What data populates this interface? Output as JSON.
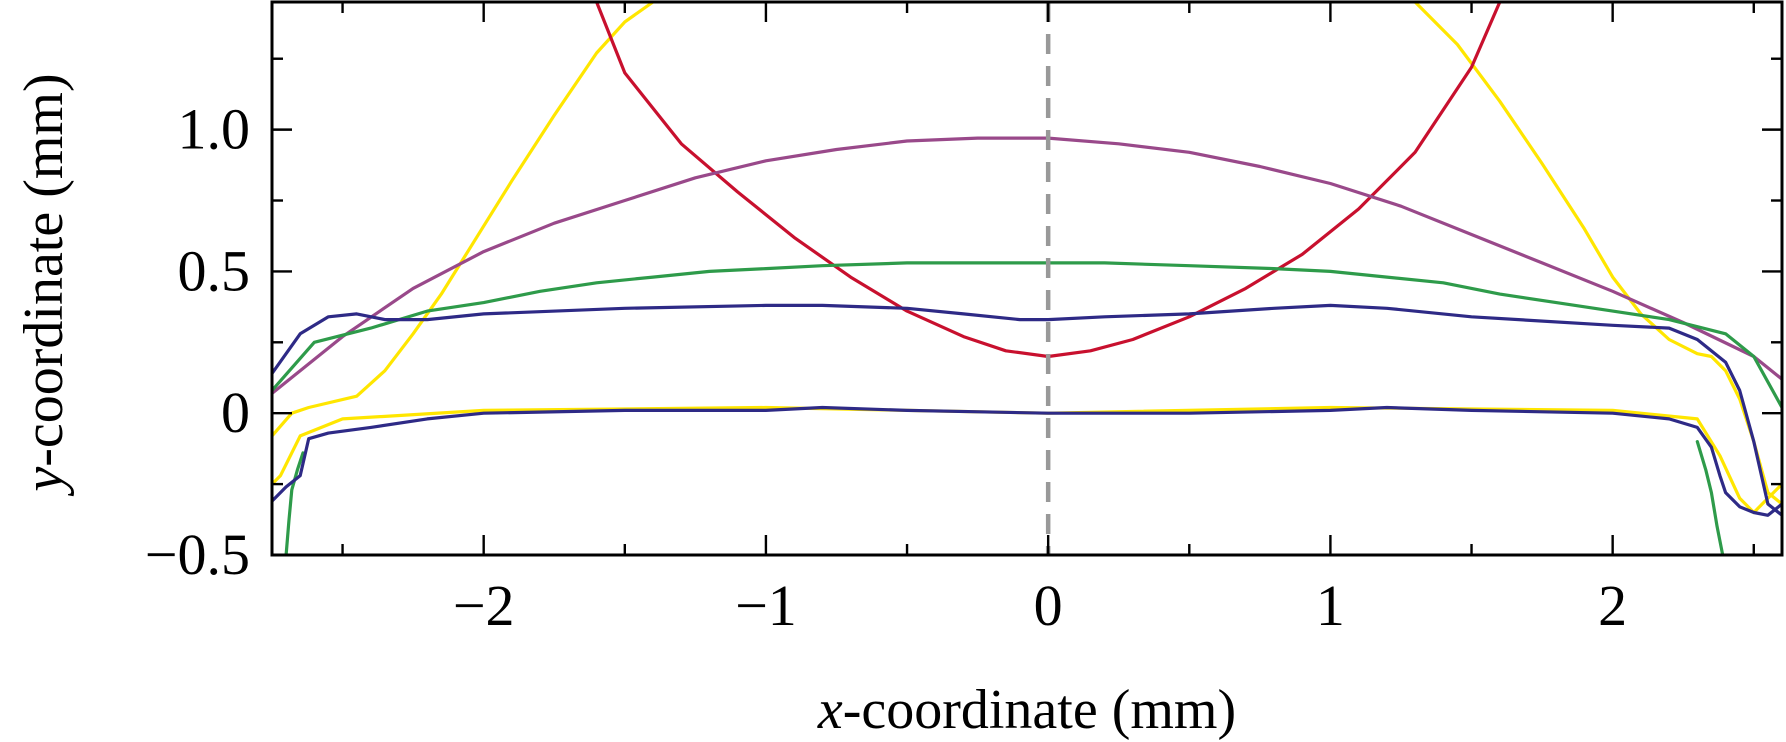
{
  "chart_data": {
    "type": "line",
    "title": "",
    "xlabel": {
      "var": "x",
      "rest": "-coordinate (mm)"
    },
    "ylabel": {
      "var": "y",
      "rest": "-coordinate (mm)"
    },
    "xlim": [
      -2.75,
      2.6
    ],
    "ylim": [
      -0.5,
      1.45
    ],
    "xticks": [
      -2,
      -1,
      0,
      1,
      2
    ],
    "xtick_labels": [
      "−2",
      "−1",
      "0",
      "1",
      "2"
    ],
    "yticks": [
      -0.5,
      0,
      0.5,
      1.0
    ],
    "ytick_labels": [
      "−0.5",
      "0",
      "0.5",
      "1.0"
    ],
    "grid": false,
    "legend": "none",
    "reference_line": {
      "x": 0,
      "style": "dashed",
      "color": "#999999"
    },
    "series": [
      {
        "color": "#ffe600",
        "x": [
          -2.75,
          -2.68,
          -2.62,
          -2.45,
          -2.35,
          -2.25,
          -2.15,
          -2.05,
          -1.9,
          -1.75,
          -1.6,
          -1.5,
          -1.4
        ],
        "y": [
          -0.08,
          0.0,
          0.02,
          0.06,
          0.15,
          0.28,
          0.42,
          0.58,
          0.82,
          1.05,
          1.27,
          1.38,
          1.45
        ]
      },
      {
        "color": "#ffe600",
        "x": [
          1.3,
          1.45,
          1.6,
          1.75,
          1.9,
          2.0,
          2.1,
          2.2,
          2.3,
          2.35,
          2.4,
          2.45,
          2.5,
          2.55,
          2.6
        ],
        "y": [
          1.45,
          1.3,
          1.1,
          0.88,
          0.65,
          0.48,
          0.35,
          0.26,
          0.21,
          0.2,
          0.15,
          0.05,
          -0.1,
          -0.28,
          -0.32
        ]
      },
      {
        "color": "#ffe600",
        "x": [
          -2.75,
          -2.72,
          -2.7,
          -2.65,
          -2.5,
          -2.0,
          -1.0,
          0.0,
          1.0,
          2.0,
          2.3,
          2.38,
          2.45,
          2.5,
          2.55,
          2.6
        ],
        "y": [
          -0.25,
          -0.22,
          -0.18,
          -0.08,
          -0.02,
          0.01,
          0.02,
          0.0,
          0.02,
          0.01,
          -0.02,
          -0.15,
          -0.3,
          -0.35,
          -0.3,
          -0.25
        ]
      },
      {
        "color": "#c8102e",
        "x": [
          -1.6,
          -1.5,
          -1.3,
          -1.1,
          -0.9,
          -0.7,
          -0.5,
          -0.3,
          -0.15,
          0.0,
          0.15,
          0.3,
          0.5,
          0.7,
          0.9,
          1.1,
          1.3,
          1.5,
          1.6
        ],
        "y": [
          1.45,
          1.2,
          0.95,
          0.78,
          0.62,
          0.48,
          0.36,
          0.27,
          0.22,
          0.2,
          0.22,
          0.26,
          0.34,
          0.44,
          0.56,
          0.72,
          0.92,
          1.22,
          1.45
        ]
      },
      {
        "color": "#99498a",
        "x": [
          -2.75,
          -2.5,
          -2.25,
          -2.0,
          -1.75,
          -1.5,
          -1.25,
          -1.0,
          -0.75,
          -0.5,
          -0.25,
          0.0,
          0.25,
          0.5,
          0.75,
          1.0,
          1.25,
          1.5,
          1.75,
          2.0,
          2.25,
          2.5,
          2.6
        ],
        "y": [
          0.07,
          0.27,
          0.44,
          0.57,
          0.67,
          0.75,
          0.83,
          0.89,
          0.93,
          0.96,
          0.97,
          0.97,
          0.95,
          0.92,
          0.87,
          0.81,
          0.73,
          0.63,
          0.53,
          0.43,
          0.32,
          0.2,
          0.12
        ]
      },
      {
        "color": "#2e9b4a",
        "x": [
          -2.75,
          -2.6,
          -2.4,
          -2.2,
          -2.0,
          -1.8,
          -1.6,
          -1.4,
          -1.2,
          -1.0,
          -0.8,
          -0.5,
          -0.2,
          0.0,
          0.2,
          0.5,
          0.8,
          1.0,
          1.2,
          1.4,
          1.6,
          1.8,
          2.0,
          2.2,
          2.4,
          2.5,
          2.6
        ],
        "y": [
          0.08,
          0.25,
          0.3,
          0.36,
          0.39,
          0.43,
          0.46,
          0.48,
          0.5,
          0.51,
          0.52,
          0.53,
          0.53,
          0.53,
          0.53,
          0.52,
          0.51,
          0.5,
          0.48,
          0.46,
          0.42,
          0.39,
          0.36,
          0.33,
          0.28,
          0.2,
          0.02
        ]
      },
      {
        "color": "#2e9b4a",
        "x": [
          -2.7,
          -2.69,
          -2.68,
          -2.66,
          -2.64
        ],
        "y": [
          -0.5,
          -0.38,
          -0.27,
          -0.2,
          -0.14
        ]
      },
      {
        "color": "#2e9b4a",
        "x": [
          2.3,
          2.33,
          2.35,
          2.37,
          2.39
        ],
        "y": [
          -0.1,
          -0.2,
          -0.28,
          -0.4,
          -0.5
        ]
      },
      {
        "color": "#2e2a86",
        "x": [
          -2.75,
          -2.65,
          -2.55,
          -2.45,
          -2.35,
          -2.2,
          -2.0,
          -1.5,
          -1.0,
          -0.8,
          -0.5,
          -0.3,
          -0.1,
          0.0,
          0.2,
          0.5,
          0.8,
          1.0,
          1.2,
          1.5,
          2.0,
          2.2,
          2.3,
          2.4,
          2.45,
          2.5,
          2.55,
          2.6
        ],
        "y": [
          0.14,
          0.28,
          0.34,
          0.35,
          0.33,
          0.33,
          0.35,
          0.37,
          0.38,
          0.38,
          0.37,
          0.35,
          0.33,
          0.33,
          0.34,
          0.35,
          0.37,
          0.38,
          0.37,
          0.34,
          0.31,
          0.3,
          0.26,
          0.18,
          0.08,
          -0.1,
          -0.32,
          -0.36
        ]
      },
      {
        "color": "#2e2a86",
        "x": [
          -2.75,
          -2.7,
          -2.65,
          -2.62,
          -2.55,
          -2.4,
          -2.2,
          -2.0,
          -1.5,
          -1.0,
          -0.8,
          -0.5,
          0.0,
          0.5,
          1.0,
          1.2,
          1.5,
          2.0,
          2.2,
          2.3,
          2.35,
          2.38,
          2.4,
          2.45,
          2.5,
          2.55,
          2.6
        ],
        "y": [
          -0.31,
          -0.26,
          -0.22,
          -0.09,
          -0.07,
          -0.05,
          -0.02,
          0.0,
          0.01,
          0.01,
          0.02,
          0.01,
          0.0,
          0.0,
          0.01,
          0.02,
          0.01,
          0.0,
          -0.02,
          -0.05,
          -0.12,
          -0.22,
          -0.28,
          -0.33,
          -0.35,
          -0.36,
          -0.32
        ]
      }
    ]
  }
}
